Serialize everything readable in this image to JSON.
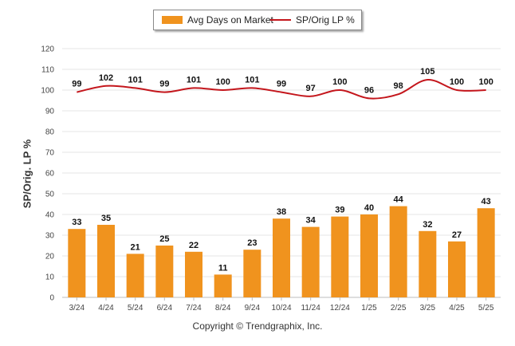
{
  "legend": {
    "bar_label": "Avg Days on Market",
    "line_label": "SP/Orig LP %"
  },
  "footer": "Copyright © Trendgraphix, Inc.",
  "colors": {
    "bar": "#f0931e",
    "line": "#c4161c",
    "grid": "#e6e6e6"
  },
  "chart_data": {
    "type": "bar",
    "title": "",
    "xlabel": "",
    "ylabel": "SP/Orig. LP %",
    "ylim": [
      0,
      120
    ],
    "yticks": [
      0,
      10,
      20,
      30,
      40,
      50,
      60,
      70,
      80,
      90,
      100,
      110,
      120
    ],
    "grid": true,
    "legend_position": "top-center",
    "categories": [
      "3/24",
      "4/24",
      "5/24",
      "6/24",
      "7/24",
      "8/24",
      "9/24",
      "10/24",
      "11/24",
      "12/24",
      "1/25",
      "2/25",
      "3/25",
      "4/25",
      "5/25"
    ],
    "series": [
      {
        "name": "Avg Days on Market",
        "type": "bar",
        "values": [
          33,
          35,
          21,
          25,
          22,
          11,
          23,
          38,
          34,
          39,
          40,
          44,
          32,
          27,
          43
        ]
      },
      {
        "name": "SP/Orig LP %",
        "type": "line",
        "values": [
          99,
          102,
          101,
          99,
          101,
          100,
          101,
          99,
          97,
          100,
          96,
          98,
          105,
          100,
          100
        ]
      }
    ]
  }
}
